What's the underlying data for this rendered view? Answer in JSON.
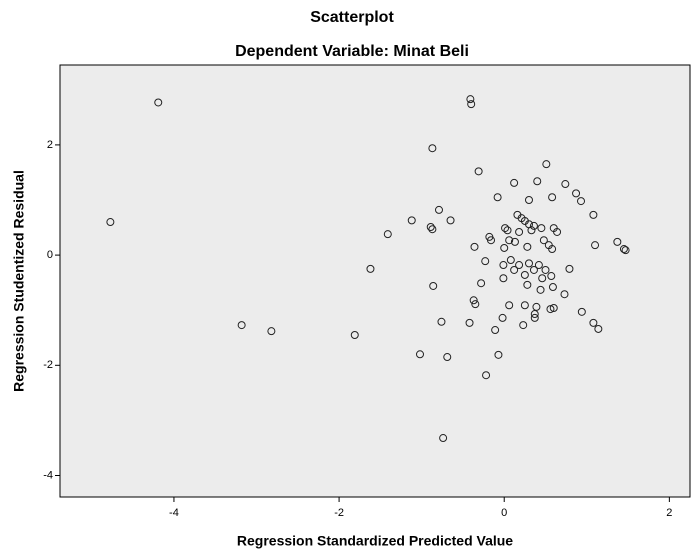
{
  "chart_data": {
    "type": "scatter",
    "title": "Scatterplot",
    "subtitle": "Dependent Variable: Minat Beli",
    "x_label": "Regression Standardized Predicted Value",
    "y_label": "Regression Studentized Residual",
    "xlim": [
      -5.38,
      2.25
    ],
    "ylim": [
      -4.39,
      3.45
    ],
    "xticks": [
      -4,
      -2,
      0,
      2
    ],
    "yticks": [
      -4,
      -2,
      0,
      2
    ],
    "background": "#ececec",
    "marker_color": "#222222",
    "x": [
      -4.77,
      -4.19,
      -0.41,
      -0.4,
      -0.87,
      -0.31,
      0.51,
      0.12,
      0.4,
      0.74,
      0.87,
      0.93,
      -0.08,
      0.3,
      0.58,
      -0.79,
      -1.12,
      -0.65,
      -0.89,
      -0.87,
      -1.41,
      0.16,
      0.21,
      0.25,
      0.3,
      0.36,
      1.08,
      0.01,
      0.04,
      0.18,
      0.33,
      0.45,
      0.6,
      0.64,
      -0.18,
      -0.16,
      0,
      0.06,
      -0.36,
      0.13,
      0.28,
      0.48,
      0.54,
      0.58,
      1.37,
      1.1,
      1.45,
      1.47,
      -0.23,
      0.08,
      0.18,
      0.3,
      0.42,
      0.5,
      0.57,
      0.79,
      -0.01,
      0.12,
      0.25,
      0.36,
      0.46,
      -1.62,
      -0.28,
      -0.01,
      0.28,
      0.44,
      0.59,
      -0.86,
      0.73,
      -0.37,
      -0.35,
      0.06,
      0.25,
      0.39,
      0.56,
      0.6,
      0.94,
      -0.02,
      0.37,
      0.37,
      -3.18,
      -2.82,
      -1.81,
      -0.76,
      -0.42,
      0.23,
      1.08,
      1.14,
      -0.11,
      -1.02,
      -0.69,
      -0.07,
      -0.22,
      -0.74
    ],
    "y": [
      0.6,
      2.77,
      2.83,
      2.74,
      1.94,
      1.52,
      1.65,
      1.31,
      1.34,
      1.29,
      1.12,
      0.98,
      1.05,
      1.0,
      1.05,
      0.82,
      0.63,
      0.63,
      0.51,
      0.47,
      0.38,
      0.73,
      0.67,
      0.62,
      0.56,
      0.53,
      0.73,
      0.49,
      0.45,
      0.42,
      0.45,
      0.49,
      0.49,
      0.42,
      0.33,
      0.27,
      0.13,
      0.27,
      0.15,
      0.24,
      0.15,
      0.27,
      0.18,
      0.11,
      0.24,
      0.18,
      0.11,
      0.09,
      -0.11,
      -0.09,
      -0.18,
      -0.15,
      -0.18,
      -0.27,
      -0.38,
      -0.25,
      -0.18,
      -0.27,
      -0.36,
      -0.27,
      -0.42,
      -0.25,
      -0.51,
      -0.42,
      -0.54,
      -0.63,
      -0.58,
      -0.56,
      -0.71,
      -0.82,
      -0.89,
      -0.91,
      -0.91,
      -0.94,
      -0.98,
      -0.96,
      -1.03,
      -1.14,
      -1.07,
      -1.14,
      -1.27,
      -1.38,
      -1.45,
      -1.21,
      -1.23,
      -1.27,
      -1.23,
      -1.34,
      -1.36,
      -1.8,
      -1.85,
      -1.81,
      -2.18,
      -3.32
    ]
  }
}
